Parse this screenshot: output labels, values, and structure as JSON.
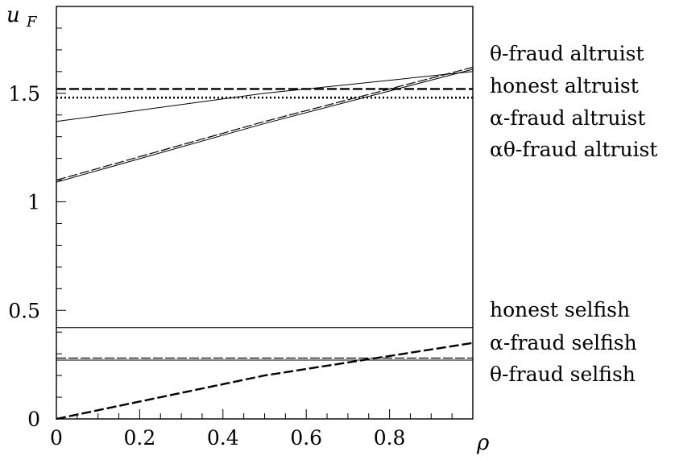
{
  "chart_data": {
    "type": "line",
    "title": "",
    "xlabel": "ρ",
    "ylabel": "u",
    "ylabel_subscript": "F",
    "xlim": [
      0,
      1
    ],
    "ylim": [
      0,
      1.9
    ],
    "x_ticks": [
      0,
      0.2,
      0.4,
      0.6,
      0.8
    ],
    "x_tick_labels": [
      "0",
      "0.2",
      "0.4",
      "0.6",
      "0.8"
    ],
    "y_ticks": [
      0,
      0.5,
      1,
      1.5
    ],
    "y_tick_labels": [
      "0",
      "0.5",
      "1",
      "1.5"
    ],
    "grid": false,
    "legend_placement": "right",
    "series": [
      {
        "name": "θ-fraud altruist",
        "style": "dashed-heavy",
        "x": [
          0,
          0.5,
          1
        ],
        "y": [
          1.1,
          1.37,
          1.62
        ]
      },
      {
        "name": "honest altruist",
        "style": "thin",
        "x": [
          0,
          0.5,
          1
        ],
        "y": [
          1.37,
          1.5,
          1.6
        ]
      },
      {
        "name": "α-fraud altruist",
        "style": "dashed",
        "x": [
          0,
          1
        ],
        "y": [
          1.52,
          1.52
        ]
      },
      {
        "name": "αθ-fraud altruist",
        "style": "dotted",
        "x": [
          0,
          1
        ],
        "y": [
          1.48,
          1.48
        ]
      },
      {
        "name": "honest selfish",
        "style": "thin",
        "x": [
          0,
          1
        ],
        "y": [
          0.42,
          0.42
        ]
      },
      {
        "name": "α-fraud selfish",
        "style": "dashed",
        "x": [
          0,
          0.5,
          1
        ],
        "y": [
          0,
          0.2,
          0.35
        ]
      },
      {
        "name": "θ-fraud selfish",
        "style": "dashed-heavy",
        "x": [
          0,
          1
        ],
        "y": [
          0.28,
          0.28
        ]
      }
    ],
    "colors": {
      "line": "#000000",
      "background": "#ffffff"
    }
  }
}
